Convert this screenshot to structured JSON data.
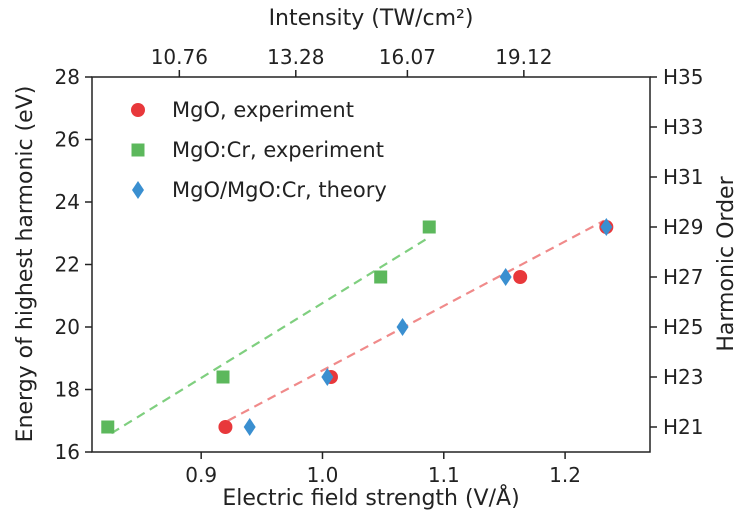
{
  "chart_data": {
    "type": "scatter",
    "xlabel": "Electric field strength (V/Å)",
    "ylabel": "Energy of highest harmonic (eV)",
    "top_xlabel": "Intensity (TW/cm²)",
    "right_ylabel": "Harmonic Order",
    "xlim": [
      0.81,
      1.27
    ],
    "ylim": [
      16,
      28
    ],
    "x_ticks": [
      0.9,
      1.0,
      1.1,
      1.2
    ],
    "x_tick_labels": [
      "0.9",
      "1.0",
      "1.1",
      "1.2"
    ],
    "y_ticks": [
      16,
      18,
      20,
      22,
      24,
      26,
      28
    ],
    "y_tick_labels": [
      "16",
      "18",
      "20",
      "22",
      "24",
      "26",
      "28"
    ],
    "top_ticks_x": [
      0.882,
      0.978,
      1.07,
      1.166
    ],
    "top_tick_labels": [
      "10.76",
      "13.28",
      "16.07",
      "19.12"
    ],
    "right_ticks_y": [
      16.8,
      18.4,
      20.0,
      21.6,
      23.2,
      24.8,
      26.4,
      28.0
    ],
    "right_tick_labels": [
      "H21",
      "H23",
      "H25",
      "H27",
      "H29",
      "H31",
      "H33",
      "H35"
    ],
    "legend_position": "top-left",
    "series": [
      {
        "name": "MgO, experiment",
        "marker": "circle",
        "color": "#e8383b",
        "points": [
          [
            0.92,
            16.8
          ],
          [
            1.007,
            18.4
          ],
          [
            1.163,
            21.6
          ],
          [
            1.234,
            23.2
          ]
        ]
      },
      {
        "name": "MgO:Cr, experiment",
        "marker": "square",
        "color": "#5cb85c",
        "points": [
          [
            0.823,
            16.8
          ],
          [
            0.918,
            18.4
          ],
          [
            1.048,
            21.6
          ],
          [
            1.088,
            23.2
          ]
        ]
      },
      {
        "name": "MgO/MgO:Cr, theory",
        "marker": "diamond",
        "color": "#3a8fd0",
        "points": [
          [
            0.94,
            16.8
          ],
          [
            1.004,
            18.4
          ],
          [
            1.066,
            20.0
          ],
          [
            1.151,
            21.6
          ],
          [
            1.234,
            23.2
          ]
        ]
      }
    ],
    "fit_lines": [
      {
        "color": "#7fcf7f",
        "from": [
          0.826,
          16.6
        ],
        "to": [
          1.085,
          22.8
        ]
      },
      {
        "color": "#f08a8a",
        "from": [
          0.922,
          17.0
        ],
        "to": [
          1.232,
          23.4
        ]
      }
    ]
  }
}
